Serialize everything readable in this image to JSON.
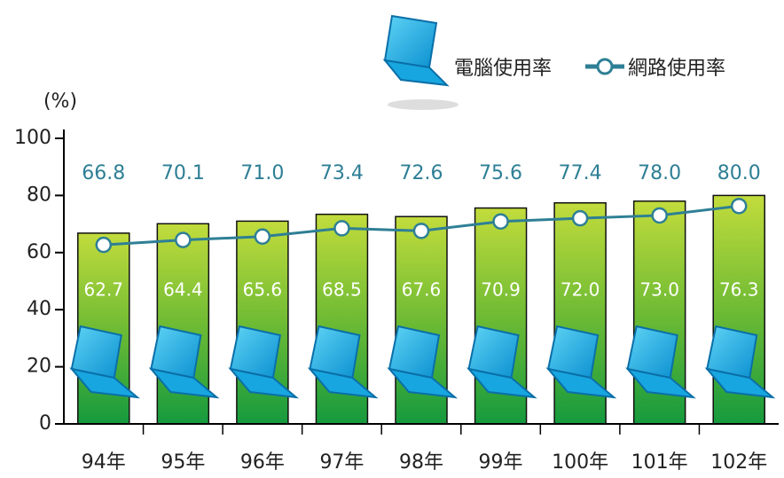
{
  "chart_data": {
    "type": "bar-line",
    "y_label": "(%)",
    "categories": [
      "94年",
      "95年",
      "96年",
      "97年",
      "98年",
      "99年",
      "100年",
      "101年",
      "102年"
    ],
    "series": [
      {
        "name": "電腦使用率",
        "type": "bar",
        "color": "#7cc13a",
        "values": [
          66.8,
          70.1,
          71.0,
          73.4,
          72.6,
          75.6,
          77.4,
          78.0,
          80.0
        ],
        "value_labels": [
          "66.8",
          "70.1",
          "71.0",
          "73.4",
          "72.6",
          "75.6",
          "77.4",
          "78.0",
          "80.0"
        ]
      },
      {
        "name": "網路使用率",
        "type": "line",
        "color": "#2e7f95",
        "values": [
          62.7,
          64.4,
          65.6,
          68.5,
          67.6,
          70.9,
          72.0,
          73.0,
          76.3
        ],
        "value_labels": [
          "62.7",
          "64.4",
          "65.6",
          "68.5",
          "67.6",
          "70.9",
          "72.0",
          "73.0",
          "76.3"
        ]
      }
    ],
    "ylim": [
      0,
      100
    ],
    "yticks": [
      0,
      20,
      40,
      60,
      80,
      100
    ]
  }
}
